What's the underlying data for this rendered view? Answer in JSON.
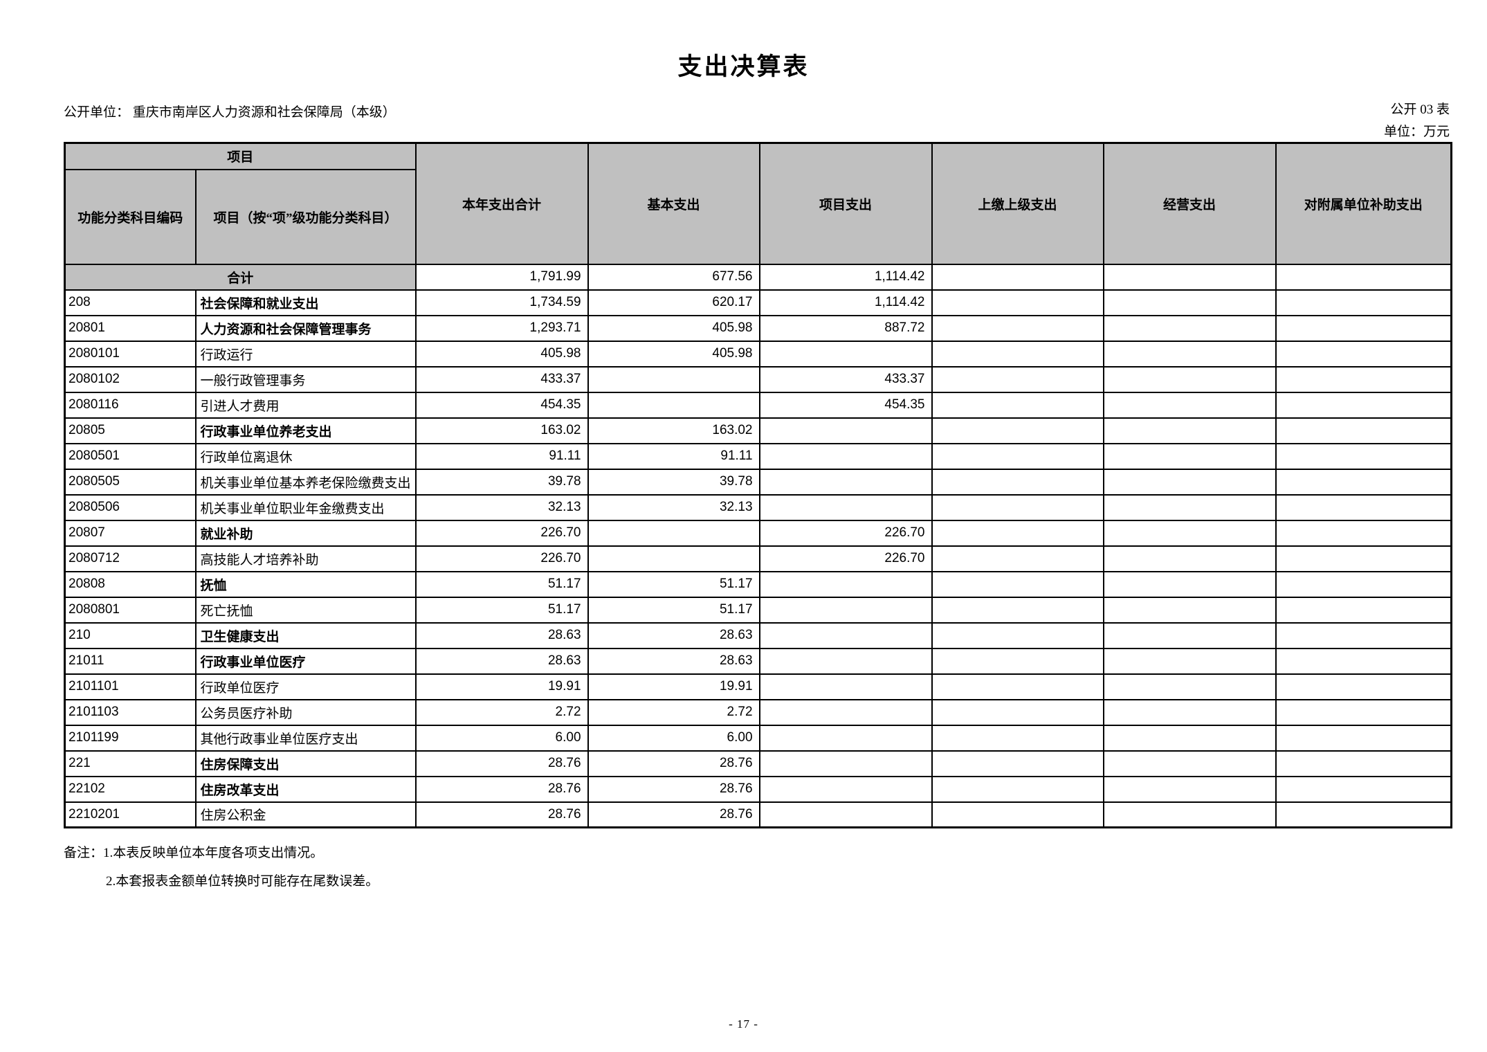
{
  "page": {
    "title": "支出决算表",
    "unit_line": "公开单位：  重庆市南岸区人力资源和社会保障局（本级）",
    "form_code": "公开 03 表",
    "unit_of_measure": "单位：万元",
    "page_number": "- 17 -"
  },
  "colors": {
    "header_gray": "#c0c0c0",
    "border": "#000000",
    "background": "#ffffff"
  },
  "table": {
    "header": {
      "group_label": "项目",
      "sub_col1": "功能分类科目编码",
      "sub_col2": "项目（按“项”级功能分类科目）",
      "value_columns": [
        "本年支出合计",
        "基本支出",
        "项目支出",
        "上缴上级支出",
        "经营支出",
        "对附属单位补助支出"
      ]
    },
    "total_row": {
      "label": "合计",
      "values": [
        "1,791.99",
        "677.56",
        "1,114.42",
        "",
        "",
        ""
      ]
    },
    "rows": [
      {
        "code": "208",
        "name": "社会保障和就业支出",
        "bold": true,
        "values": [
          "1,734.59",
          "620.17",
          "1,114.42",
          "",
          "",
          ""
        ]
      },
      {
        "code": "20801",
        "name": "人力资源和社会保障管理事务",
        "bold": true,
        "values": [
          "1,293.71",
          "405.98",
          "887.72",
          "",
          "",
          ""
        ]
      },
      {
        "code": "2080101",
        "name": "行政运行",
        "bold": false,
        "values": [
          "405.98",
          "405.98",
          "",
          "",
          "",
          ""
        ]
      },
      {
        "code": "2080102",
        "name": "一般行政管理事务",
        "bold": false,
        "values": [
          "433.37",
          "",
          "433.37",
          "",
          "",
          ""
        ]
      },
      {
        "code": "2080116",
        "name": "引进人才费用",
        "bold": false,
        "values": [
          "454.35",
          "",
          "454.35",
          "",
          "",
          ""
        ]
      },
      {
        "code": "20805",
        "name": "行政事业单位养老支出",
        "bold": true,
        "values": [
          "163.02",
          "163.02",
          "",
          "",
          "",
          ""
        ]
      },
      {
        "code": "2080501",
        "name": "行政单位离退休",
        "bold": false,
        "values": [
          "91.11",
          "91.11",
          "",
          "",
          "",
          ""
        ]
      },
      {
        "code": "2080505",
        "name": "机关事业单位基本养老保险缴费支出",
        "bold": false,
        "values": [
          "39.78",
          "39.78",
          "",
          "",
          "",
          ""
        ]
      },
      {
        "code": "2080506",
        "name": "机关事业单位职业年金缴费支出",
        "bold": false,
        "values": [
          "32.13",
          "32.13",
          "",
          "",
          "",
          ""
        ]
      },
      {
        "code": "20807",
        "name": "就业补助",
        "bold": true,
        "values": [
          "226.70",
          "",
          "226.70",
          "",
          "",
          ""
        ]
      },
      {
        "code": "2080712",
        "name": "高技能人才培养补助",
        "bold": false,
        "values": [
          "226.70",
          "",
          "226.70",
          "",
          "",
          ""
        ]
      },
      {
        "code": "20808",
        "name": "抚恤",
        "bold": true,
        "values": [
          "51.17",
          "51.17",
          "",
          "",
          "",
          ""
        ]
      },
      {
        "code": "2080801",
        "name": "死亡抚恤",
        "bold": false,
        "values": [
          "51.17",
          "51.17",
          "",
          "",
          "",
          ""
        ]
      },
      {
        "code": "210",
        "name": "卫生健康支出",
        "bold": true,
        "values": [
          "28.63",
          "28.63",
          "",
          "",
          "",
          ""
        ]
      },
      {
        "code": "21011",
        "name": "行政事业单位医疗",
        "bold": true,
        "values": [
          "28.63",
          "28.63",
          "",
          "",
          "",
          ""
        ]
      },
      {
        "code": "2101101",
        "name": "行政单位医疗",
        "bold": false,
        "values": [
          "19.91",
          "19.91",
          "",
          "",
          "",
          ""
        ]
      },
      {
        "code": "2101103",
        "name": "公务员医疗补助",
        "bold": false,
        "values": [
          "2.72",
          "2.72",
          "",
          "",
          "",
          ""
        ]
      },
      {
        "code": "2101199",
        "name": "其他行政事业单位医疗支出",
        "bold": false,
        "values": [
          "6.00",
          "6.00",
          "",
          "",
          "",
          ""
        ]
      },
      {
        "code": "221",
        "name": "住房保障支出",
        "bold": true,
        "values": [
          "28.76",
          "28.76",
          "",
          "",
          "",
          ""
        ]
      },
      {
        "code": "22102",
        "name": "住房改革支出",
        "bold": true,
        "values": [
          "28.76",
          "28.76",
          "",
          "",
          "",
          ""
        ]
      },
      {
        "code": "2210201",
        "name": "住房公积金",
        "bold": false,
        "values": [
          "28.76",
          "28.76",
          "",
          "",
          "",
          ""
        ]
      }
    ]
  },
  "notes": {
    "label": "备注：",
    "note1": "1.本表反映单位本年度各项支出情况。",
    "note2": "2.本套报表金额单位转换时可能存在尾数误差。"
  }
}
